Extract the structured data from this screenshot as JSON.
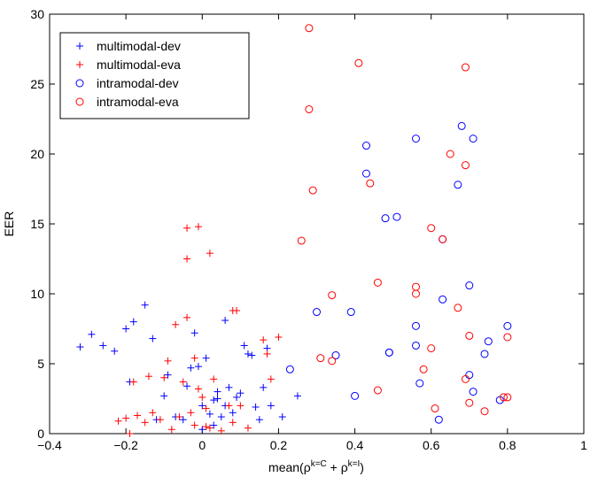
{
  "chart_data": {
    "type": "scatter",
    "title": "",
    "xlabel_base": "mean(ρ",
    "xlabel_sup1": "k=C",
    "xlabel_mid": " + ρ",
    "xlabel_sup2": "k=I",
    "xlabel_end": ")",
    "ylabel": "EER",
    "xlim": [
      -0.4,
      1.0
    ],
    "ylim": [
      0,
      30
    ],
    "xticks": [
      -0.4,
      -0.2,
      0,
      0.2,
      0.4,
      0.6,
      0.8,
      1
    ],
    "xtick_labels": [
      "−0.4",
      "−0.2",
      "0",
      "0.2",
      "0.4",
      "0.6",
      "0.8",
      "1"
    ],
    "yticks": [
      0,
      5,
      10,
      15,
      20,
      25,
      30
    ],
    "ytick_labels": [
      "0",
      "5",
      "10",
      "15",
      "20",
      "25",
      "30"
    ],
    "grid": false,
    "legend_position": "top-left",
    "series": [
      {
        "name": "multimodal-dev",
        "marker": "plus",
        "color": "#0000ff",
        "points": [
          [
            -0.32,
            6.2
          ],
          [
            -0.29,
            7.1
          ],
          [
            -0.26,
            6.3
          ],
          [
            -0.23,
            5.9
          ],
          [
            -0.2,
            7.5
          ],
          [
            -0.18,
            8.0
          ],
          [
            -0.15,
            9.2
          ],
          [
            -0.13,
            6.8
          ],
          [
            -0.19,
            3.7
          ],
          [
            -0.12,
            1.0
          ],
          [
            -0.1,
            2.7
          ],
          [
            -0.09,
            4.2
          ],
          [
            -0.07,
            1.2
          ],
          [
            -0.04,
            3.4
          ],
          [
            -0.03,
            4.7
          ],
          [
            -0.02,
            7.2
          ],
          [
            -0.01,
            4.8
          ],
          [
            0.0,
            0.3
          ],
          [
            0.0,
            2.0
          ],
          [
            0.01,
            5.4
          ],
          [
            0.02,
            1.4
          ],
          [
            0.03,
            0.6
          ],
          [
            0.03,
            2.4
          ],
          [
            0.04,
            2.5
          ],
          [
            0.04,
            3.0
          ],
          [
            0.05,
            1.2
          ],
          [
            0.06,
            8.1
          ],
          [
            0.06,
            2.0
          ],
          [
            0.07,
            3.3
          ],
          [
            0.08,
            1.5
          ],
          [
            0.09,
            2.6
          ],
          [
            0.1,
            2.9
          ],
          [
            0.11,
            6.3
          ],
          [
            0.12,
            5.7
          ],
          [
            0.13,
            5.6
          ],
          [
            0.14,
            1.9
          ],
          [
            0.15,
            1.0
          ],
          [
            0.16,
            3.3
          ],
          [
            0.17,
            6.1
          ],
          [
            0.18,
            2.0
          ],
          [
            0.21,
            1.2
          ],
          [
            0.25,
            2.7
          ],
          [
            -0.05,
            1.0
          ]
        ]
      },
      {
        "name": "multimodal-eva",
        "marker": "plus",
        "color": "#ff0000",
        "points": [
          [
            -0.22,
            0.9
          ],
          [
            -0.2,
            1.1
          ],
          [
            -0.18,
            3.7
          ],
          [
            -0.17,
            1.3
          ],
          [
            -0.15,
            0.8
          ],
          [
            -0.14,
            4.1
          ],
          [
            -0.13,
            1.5
          ],
          [
            -0.11,
            1.0
          ],
          [
            -0.1,
            4.0
          ],
          [
            -0.09,
            5.2
          ],
          [
            -0.08,
            0.3
          ],
          [
            -0.07,
            7.8
          ],
          [
            -0.06,
            1.2
          ],
          [
            -0.05,
            3.7
          ],
          [
            -0.04,
            8.3
          ],
          [
            -0.04,
            14.7
          ],
          [
            -0.04,
            12.5
          ],
          [
            -0.03,
            1.5
          ],
          [
            -0.02,
            5.4
          ],
          [
            -0.02,
            0.6
          ],
          [
            -0.01,
            3.2
          ],
          [
            -0.01,
            14.8
          ],
          [
            0.0,
            2.6
          ],
          [
            0.01,
            1.8
          ],
          [
            0.01,
            0.5
          ],
          [
            0.02,
            12.9
          ],
          [
            0.02,
            0.4
          ],
          [
            0.03,
            3.9
          ],
          [
            0.05,
            0.2
          ],
          [
            0.07,
            2.0
          ],
          [
            0.08,
            0.8
          ],
          [
            0.08,
            8.8
          ],
          [
            0.09,
            8.8
          ],
          [
            0.1,
            2.0
          ],
          [
            0.12,
            0.4
          ],
          [
            0.16,
            6.7
          ],
          [
            0.17,
            5.7
          ],
          [
            0.18,
            3.9
          ],
          [
            0.2,
            6.9
          ],
          [
            -0.19,
            0.0
          ]
        ]
      },
      {
        "name": "intramodal-dev",
        "marker": "circle",
        "color": "#0000ff",
        "points": [
          [
            0.23,
            4.6
          ],
          [
            0.3,
            8.7
          ],
          [
            0.35,
            5.6
          ],
          [
            0.39,
            8.7
          ],
          [
            0.4,
            2.7
          ],
          [
            0.43,
            20.6
          ],
          [
            0.43,
            18.6
          ],
          [
            0.48,
            15.4
          ],
          [
            0.49,
            5.8
          ],
          [
            0.49,
            5.8
          ],
          [
            0.51,
            15.5
          ],
          [
            0.56,
            21.1
          ],
          [
            0.56,
            7.7
          ],
          [
            0.56,
            6.3
          ],
          [
            0.57,
            3.6
          ],
          [
            0.62,
            1.0
          ],
          [
            0.63,
            9.6
          ],
          [
            0.63,
            13.9
          ],
          [
            0.67,
            17.8
          ],
          [
            0.68,
            22.0
          ],
          [
            0.7,
            10.6
          ],
          [
            0.71,
            21.1
          ],
          [
            0.7,
            4.2
          ],
          [
            0.71,
            3.0
          ],
          [
            0.74,
            5.7
          ],
          [
            0.75,
            6.6
          ],
          [
            0.78,
            2.4
          ],
          [
            0.8,
            7.7
          ]
        ]
      },
      {
        "name": "intramodal-eva",
        "marker": "circle",
        "color": "#ff0000",
        "points": [
          [
            0.26,
            13.8
          ],
          [
            0.28,
            29.0
          ],
          [
            0.28,
            23.2
          ],
          [
            0.29,
            17.4
          ],
          [
            0.31,
            5.4
          ],
          [
            0.34,
            9.9
          ],
          [
            0.34,
            5.2
          ],
          [
            0.41,
            26.5
          ],
          [
            0.44,
            17.9
          ],
          [
            0.46,
            10.8
          ],
          [
            0.46,
            3.1
          ],
          [
            0.56,
            10.5
          ],
          [
            0.56,
            10.0
          ],
          [
            0.58,
            4.6
          ],
          [
            0.6,
            14.7
          ],
          [
            0.6,
            6.1
          ],
          [
            0.61,
            1.8
          ],
          [
            0.65,
            20.0
          ],
          [
            0.67,
            9.0
          ],
          [
            0.69,
            26.2
          ],
          [
            0.69,
            19.2
          ],
          [
            0.69,
            3.9
          ],
          [
            0.7,
            7.0
          ],
          [
            0.7,
            2.2
          ],
          [
            0.74,
            1.6
          ],
          [
            0.79,
            2.6
          ],
          [
            0.8,
            6.9
          ],
          [
            0.8,
            2.6
          ],
          [
            0.63,
            13.9
          ]
        ]
      }
    ]
  }
}
